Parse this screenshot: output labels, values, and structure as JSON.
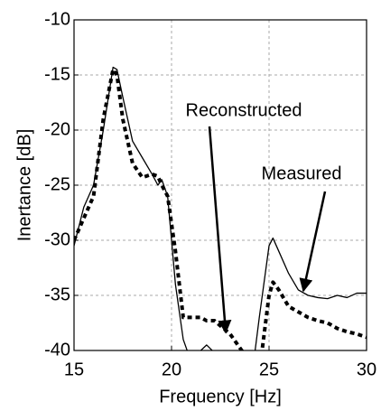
{
  "chart_data": {
    "type": "line",
    "x_label": "Frequency [Hz]",
    "y_label": "Inertance [dB]",
    "x": [
      15,
      15.5,
      16,
      16.5,
      17,
      17.2,
      17.5,
      18,
      18.5,
      19,
      19.3,
      19.5,
      19.8,
      20.2,
      20.6,
      21,
      21.5,
      21.8,
      22.2,
      23,
      24,
      24.5,
      25,
      25.2,
      25.5,
      26,
      26.5,
      27,
      27.5,
      28,
      28.5,
      29,
      29.5,
      30
    ],
    "series": [
      {
        "name": "Measured",
        "color": "#000000",
        "linestyle": "solid",
        "linewidth": 1.3,
        "values": [
          -30.5,
          -27,
          -25,
          -20,
          -14.3,
          -14.5,
          -17,
          -21,
          -22.5,
          -24,
          -25,
          -24.5,
          -26,
          -34,
          -39,
          -41,
          -40,
          -39.5,
          -40.2,
          -42,
          -44,
          -37,
          -30.5,
          -29.8,
          -31,
          -33,
          -34.5,
          -35,
          -35.2,
          -35.3,
          -35,
          -35.2,
          -34.8,
          -34.8
        ]
      },
      {
        "name": "Reconstructed",
        "color": "#000000",
        "linestyle": "dashed",
        "linewidth": 4,
        "values": [
          -30,
          -28,
          -26,
          -19,
          -14.5,
          -15,
          -19,
          -23,
          -24.3,
          -24,
          -24.2,
          -25,
          -26,
          -31,
          -37,
          -37,
          -37,
          -37.3,
          -37.3,
          -38.5,
          -41,
          -42,
          -35,
          -33.8,
          -34.5,
          -36,
          -36.5,
          -37,
          -37.3,
          -37.5,
          -38,
          -38.3,
          -38.5,
          -38.8
        ]
      }
    ],
    "annotations": [
      "Reconstructed",
      "Measured"
    ],
    "xlim": [
      15,
      30
    ],
    "xticks": [
      15,
      20,
      25,
      30
    ],
    "ylim": [
      -40,
      -10
    ],
    "yticks": [
      -40,
      -35,
      -30,
      -25,
      -20,
      -15,
      -10
    ],
    "grid": true
  }
}
